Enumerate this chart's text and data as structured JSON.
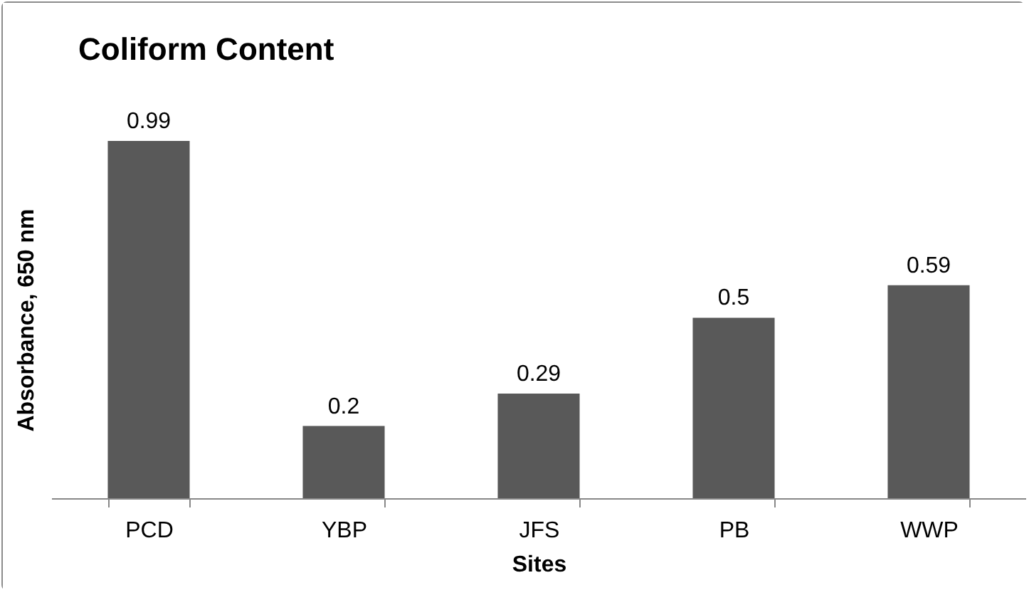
{
  "chart_data": {
    "type": "bar",
    "title": "Coliform Content",
    "xlabel": "Sites",
    "ylabel": "Absorbance, 650 nm",
    "categories": [
      "PCD",
      "YBP",
      "JFS",
      "PB",
      "WWP"
    ],
    "values": [
      0.99,
      0.2,
      0.29,
      0.5,
      0.59
    ],
    "color": "#595959",
    "data_labels": true,
    "tick_labels": "x"
  }
}
